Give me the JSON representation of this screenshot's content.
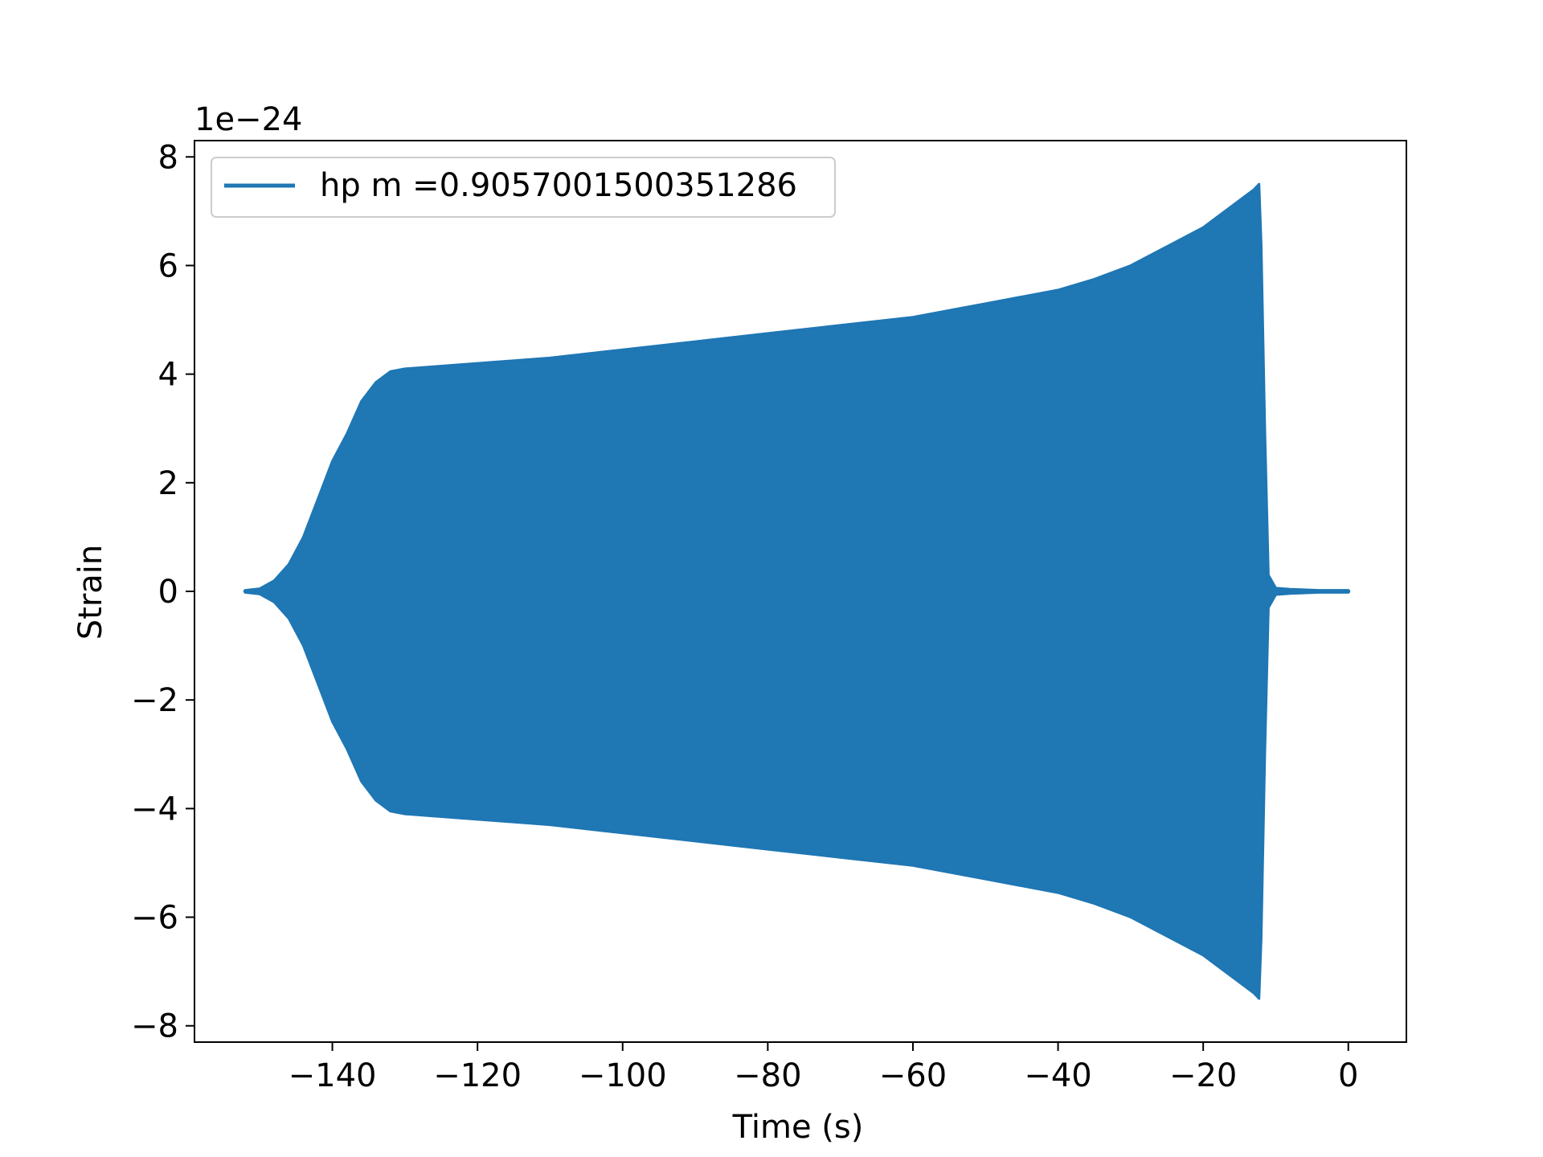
{
  "chart_data": {
    "type": "line",
    "title": "",
    "xlabel": "Time (s)",
    "ylabel": "Strain",
    "y_offset_label": "1e−24",
    "xlim": [
      -159,
      8
    ],
    "ylim": [
      -8.3,
      8.3
    ],
    "x_ticks": [
      -140,
      -120,
      -100,
      -80,
      -60,
      -40,
      -20,
      0
    ],
    "x_tick_labels": [
      "−140",
      "−120",
      "−100",
      "−80",
      "−60",
      "−40",
      "−20",
      "0"
    ],
    "y_ticks": [
      -8,
      -6,
      -4,
      -2,
      0,
      2,
      4,
      6,
      8
    ],
    "y_tick_labels": [
      "−8",
      "−6",
      "−4",
      "−2",
      "0",
      "2",
      "4",
      "6",
      "8"
    ],
    "grid": false,
    "legend_position": "top-left",
    "series": [
      {
        "name": "hp m =0.9057001500351286",
        "color": "#1f77b4",
        "envelope_units": "1e-24",
        "t_start": -152,
        "t_end": 0,
        "envelope": [
          [
            -152,
            0.02
          ],
          [
            -150,
            0.05
          ],
          [
            -148,
            0.2
          ],
          [
            -146,
            0.5
          ],
          [
            -144,
            1.0
          ],
          [
            -142,
            1.7
          ],
          [
            -140,
            2.4
          ],
          [
            -138,
            2.9
          ],
          [
            -136,
            3.5
          ],
          [
            -134,
            3.85
          ],
          [
            -132,
            4.05
          ],
          [
            -130,
            4.1
          ],
          [
            -120,
            4.2
          ],
          [
            -110,
            4.3
          ],
          [
            -100,
            4.45
          ],
          [
            -90,
            4.6
          ],
          [
            -80,
            4.75
          ],
          [
            -70,
            4.9
          ],
          [
            -60,
            5.05
          ],
          [
            -50,
            5.3
          ],
          [
            -40,
            5.55
          ],
          [
            -35,
            5.75
          ],
          [
            -30,
            6.0
          ],
          [
            -25,
            6.35
          ],
          [
            -20,
            6.7
          ],
          [
            -16,
            7.1
          ],
          [
            -13,
            7.4
          ],
          [
            -12.3,
            7.5
          ],
          [
            -12.0,
            6.4
          ],
          [
            -11.5,
            3.0
          ],
          [
            -11.0,
            0.3
          ],
          [
            -10,
            0.06
          ],
          [
            -8,
            0.04
          ],
          [
            -4,
            0.02
          ],
          [
            0,
            0.02
          ]
        ]
      }
    ]
  }
}
